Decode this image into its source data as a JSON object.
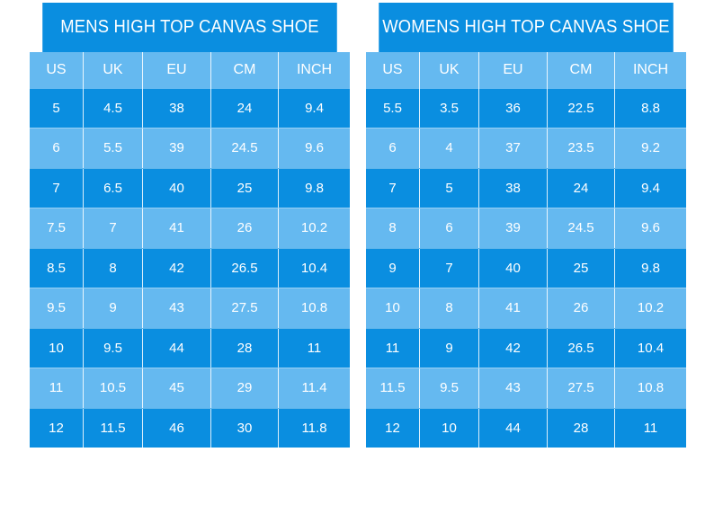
{
  "men": {
    "title": "MENS HIGH TOP CANVAS SHOE",
    "headers": [
      "US",
      "UK",
      "EU",
      "CM",
      "INCH"
    ],
    "rows": [
      [
        "5",
        "4.5",
        "38",
        "24",
        "9.4"
      ],
      [
        "6",
        "5.5",
        "39",
        "24.5",
        "9.6"
      ],
      [
        "7",
        "6.5",
        "40",
        "25",
        "9.8"
      ],
      [
        "7.5",
        "7",
        "41",
        "26",
        "10.2"
      ],
      [
        "8.5",
        "8",
        "42",
        "26.5",
        "10.4"
      ],
      [
        "9.5",
        "9",
        "43",
        "27.5",
        "10.8"
      ],
      [
        "10",
        "9.5",
        "44",
        "28",
        "11"
      ],
      [
        "11",
        "10.5",
        "45",
        "29",
        "11.4"
      ],
      [
        "12",
        "11.5",
        "46",
        "30",
        "11.8"
      ]
    ]
  },
  "women": {
    "title": "WOMENS HIGH TOP CANVAS SHOE",
    "headers": [
      "US",
      "UK",
      "EU",
      "CM",
      "INCH"
    ],
    "rows": [
      [
        "5.5",
        "3.5",
        "36",
        "22.5",
        "8.8"
      ],
      [
        "6",
        "4",
        "37",
        "23.5",
        "9.2"
      ],
      [
        "7",
        "5",
        "38",
        "24",
        "9.4"
      ],
      [
        "8",
        "6",
        "39",
        "24.5",
        "9.6"
      ],
      [
        "9",
        "7",
        "40",
        "25",
        "9.8"
      ],
      [
        "10",
        "8",
        "41",
        "26",
        "10.2"
      ],
      [
        "11",
        "9",
        "42",
        "26.5",
        "10.4"
      ],
      [
        "11.5",
        "9.5",
        "43",
        "27.5",
        "10.8"
      ],
      [
        "12",
        "10",
        "44",
        "28",
        "11"
      ]
    ]
  },
  "colors": {
    "dark_blue": "#0a8ee0",
    "light_blue": "#65b9f0",
    "text": "#ffffff"
  }
}
